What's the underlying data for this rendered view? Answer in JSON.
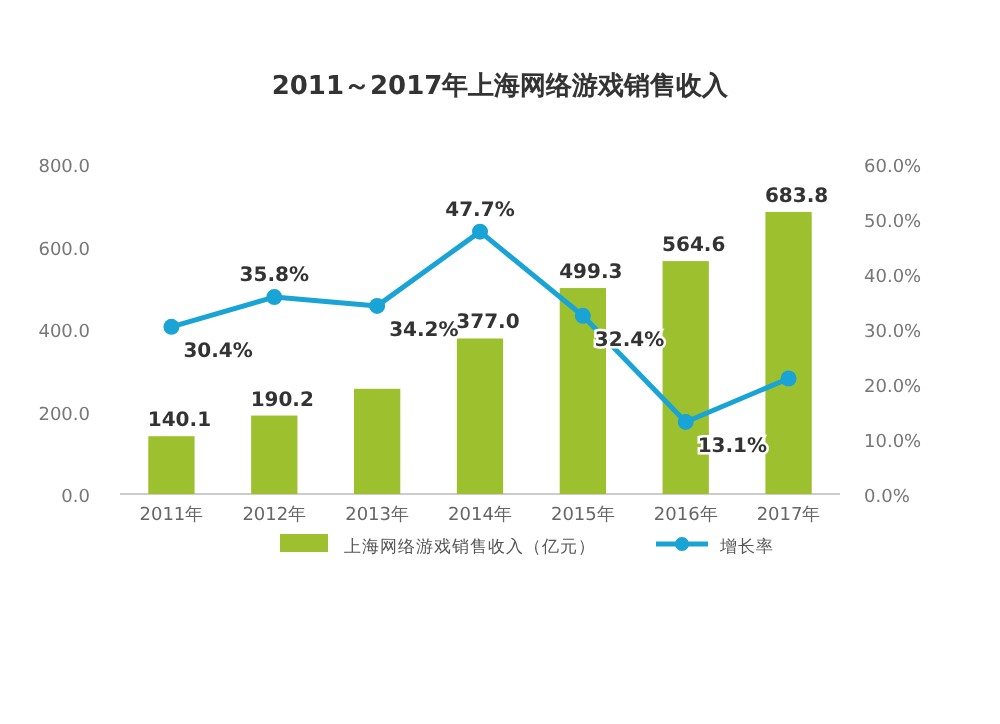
{
  "chart_data": {
    "type": "bar",
    "title": "2011～2017年上海网络游戏销售收入",
    "categories": [
      "2011年",
      "2012年",
      "2013年",
      "2014年",
      "2015年",
      "2016年",
      "2017年"
    ],
    "series": [
      {
        "name": "上海网络游戏销售收入（亿元）",
        "color": "#9dc02e",
        "values": [
          140.1,
          190.2,
          255,
          377.0,
          499.3,
          564.6,
          683.8
        ],
        "value_labels": [
          "140.1",
          "190.2",
          null,
          "377.0",
          "499.3",
          "564.6",
          "683.8"
        ]
      },
      {
        "name": "增长率",
        "type": "line",
        "axis": "y2",
        "color": "#1aa3d5",
        "marker": "circle",
        "values": [
          30.4,
          35.8,
          34.2,
          47.7,
          32.4,
          13.1,
          21
        ],
        "value_labels": [
          "30.4%",
          "35.8%",
          "34.2%",
          "47.7%",
          "32.4%",
          "13.1%",
          null
        ]
      }
    ],
    "ylim": [
      0,
      800
    ],
    "yticks": [
      {
        "value": 0,
        "label": "0.0"
      },
      {
        "value": 200,
        "label": "200.0"
      },
      {
        "value": 400,
        "label": "400.0"
      },
      {
        "value": 600,
        "label": "600.0"
      },
      {
        "value": 800,
        "label": "800.0"
      }
    ],
    "y2lim": [
      0,
      60
    ],
    "y2ticks": [
      {
        "value": 0,
        "label": "0.0%"
      },
      {
        "value": 10,
        "label": "10.0%"
      },
      {
        "value": 20,
        "label": "20.0%"
      },
      {
        "value": 30,
        "label": "30.0%"
      },
      {
        "value": 40,
        "label": "40.0%"
      },
      {
        "value": 50,
        "label": "50.0%"
      },
      {
        "value": 60,
        "label": "60.0%"
      }
    ],
    "grid": false,
    "legend": "bottom"
  }
}
